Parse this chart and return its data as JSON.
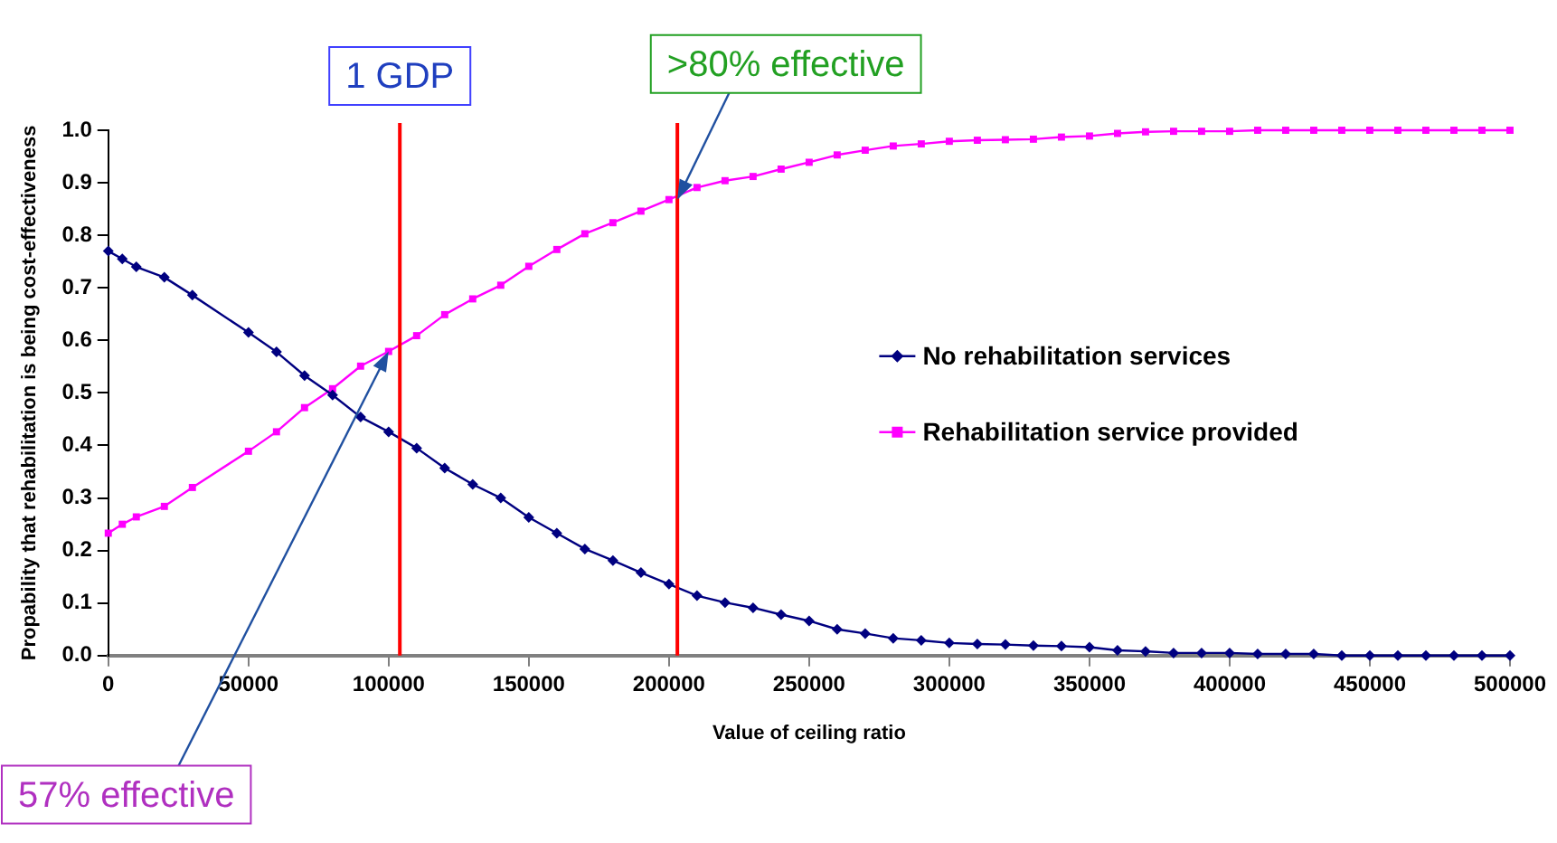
{
  "chart_data": {
    "type": "line",
    "xlabel": "Value of ceiling ratio",
    "ylabel": "Propability that rehabilitation is being cost-effectiveness",
    "x": [
      0,
      5000,
      10000,
      20000,
      30000,
      50000,
      60000,
      70000,
      80000,
      90000,
      100000,
      110000,
      120000,
      130000,
      140000,
      150000,
      160000,
      170000,
      180000,
      190000,
      200000,
      210000,
      220000,
      230000,
      240000,
      250000,
      260000,
      270000,
      280000,
      290000,
      300000,
      310000,
      320000,
      330000,
      340000,
      350000,
      360000,
      370000,
      380000,
      390000,
      400000,
      410000,
      420000,
      430000,
      440000,
      450000,
      460000,
      470000,
      480000,
      490000,
      500000
    ],
    "series": [
      {
        "name": "No rehabilitation services",
        "color": "#000080",
        "marker": "diamond",
        "values": [
          0.77,
          0.755,
          0.74,
          0.72,
          0.686,
          0.615,
          0.578,
          0.533,
          0.496,
          0.454,
          0.426,
          0.395,
          0.357,
          0.326,
          0.3,
          0.263,
          0.233,
          0.203,
          0.181,
          0.158,
          0.136,
          0.114,
          0.101,
          0.091,
          0.078,
          0.066,
          0.05,
          0.042,
          0.033,
          0.029,
          0.024,
          0.022,
          0.021,
          0.019,
          0.018,
          0.016,
          0.01,
          0.008,
          0.005,
          0.005,
          0.005,
          0.003,
          0.003,
          0.003,
          0,
          0,
          0,
          0,
          0,
          0,
          0
        ]
      },
      {
        "name": "Rehabilitation service provided",
        "color": "#ff00ff",
        "marker": "square",
        "values": [
          0.233,
          0.25,
          0.264,
          0.284,
          0.32,
          0.389,
          0.426,
          0.472,
          0.508,
          0.551,
          0.579,
          0.609,
          0.649,
          0.679,
          0.705,
          0.741,
          0.773,
          0.803,
          0.824,
          0.846,
          0.868,
          0.891,
          0.904,
          0.912,
          0.926,
          0.939,
          0.953,
          0.962,
          0.97,
          0.974,
          0.979,
          0.981,
          0.982,
          0.983,
          0.987,
          0.989,
          0.994,
          0.997,
          0.998,
          0.998,
          0.998,
          1,
          1,
          1,
          1,
          1,
          1,
          1,
          1,
          1,
          1
        ]
      }
    ],
    "xlim": [
      0,
      500000
    ],
    "xticks": [
      0,
      50000,
      100000,
      150000,
      200000,
      250000,
      300000,
      350000,
      400000,
      450000,
      500000
    ],
    "ylim": [
      0,
      1
    ],
    "yticks": [
      {
        "value": 0,
        "label": "0.0"
      },
      {
        "value": 0.1,
        "label": "0.1"
      },
      {
        "value": 0.2,
        "label": "0.2"
      },
      {
        "value": 0.3,
        "label": "0.3"
      },
      {
        "value": 0.4,
        "label": "0.4"
      },
      {
        "value": 0.5,
        "label": "0.5"
      },
      {
        "value": 0.6,
        "label": "0.6"
      },
      {
        "value": 0.7,
        "label": "0.7"
      },
      {
        "value": 0.8,
        "label": "0.8"
      },
      {
        "value": 0.9,
        "label": "0.9"
      },
      {
        "value": 1,
        "label": "1.0"
      }
    ],
    "ref_lines": [
      {
        "axis": "x",
        "value": 104000,
        "label": "1 GDP",
        "color": "#ff0000"
      },
      {
        "axis": "x",
        "value": 203000,
        "color": "#ff0000"
      }
    ],
    "annotations": [
      {
        "text": ">80% effective",
        "x": 203000,
        "y": 0.868
      },
      {
        "text": "57% effective",
        "x": 100000,
        "y": 0.579
      }
    ],
    "grid": false,
    "legend": "right",
    "line_style": "solid"
  }
}
